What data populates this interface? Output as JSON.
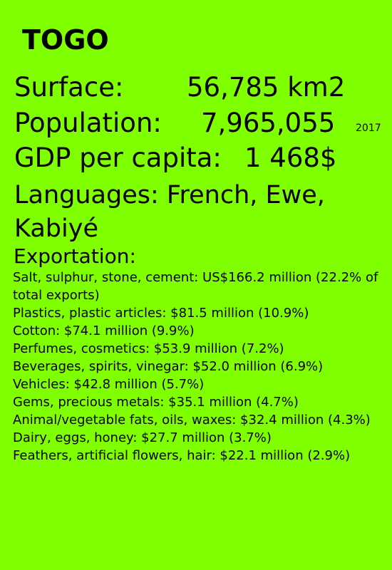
{
  "country": "TOGO",
  "stats": {
    "surface_label": "Surface:",
    "surface_value": "56,785 km2",
    "population_label": "Population:",
    "population_value": "7,965,055",
    "population_year": "2017",
    "gdp_label": "GDP per capita:",
    "gdp_value": "1 468$",
    "languages_label": "Languages:",
    "languages_value": "French, Ewe, Kabiyé"
  },
  "exportation": {
    "heading": "Exportation:",
    "items": [
      "Salt, sulphur, stone, cement: US$166.2 million (22.2% of total exports)",
      "Plastics, plastic articles: $81.5 million (10.9%)",
      "Cotton: $74.1 million (9.9%)",
      "Perfumes, cosmetics: $53.9 million (7.2%)",
      "Beverages, spirits, vinegar: $52.0 million (6.9%)",
      "Vehicles: $42.8 million (5.7%)",
      "Gems, precious metals: $35.1 million (4.7%)",
      "Animal/vegetable fats, oils, waxes: $32.4 million (4.3%)",
      "Dairy, eggs, honey: $27.7 million (3.7%)",
      "Feathers, artificial flowers, hair: $22.1 million (2.9%)"
    ]
  },
  "colors": {
    "background": "#80ff00",
    "text": "#000000"
  }
}
